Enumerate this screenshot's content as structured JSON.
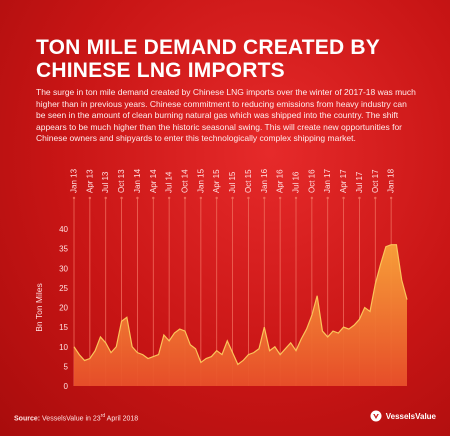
{
  "title": {
    "line1": "TON MILE DEMAND CREATED BY",
    "line2": "CHINESE LNG IMPORTS"
  },
  "description": "The surge in ton mile demand created by Chinese LNG imports over the winter of 2017-18 was much higher than in previous years. Chinese commitment to reducing emissions from heavy industry can be seen in the amount of clean burning natural gas which was shipped into the country. The shift appears to be much higher than the historic seasonal swing. This will create new opportunities for Chinese owners and shipyards to enter this technologically complex shipping market.",
  "source": {
    "label": "Source:",
    "text": "VesselsValue in 23",
    "superscript": "rd",
    "tail": "April 2018"
  },
  "brand": {
    "name": "VesselsValue",
    "icon": "vesselsvalue-logo-icon"
  },
  "colors": {
    "background": "#c81515",
    "area_top": "#f8a23a",
    "area_bottom": "#e8522a",
    "line": "#fbc45a",
    "guide": "#f06a5a"
  },
  "chart_data": {
    "type": "area",
    "ylabel": "Bn Ton Miles",
    "xlabel": "",
    "ylim": [
      0,
      40
    ],
    "yticks": [
      0,
      5,
      10,
      15,
      20,
      25,
      30,
      35,
      40
    ],
    "xtick_labels": [
      "Jan 13",
      "Apr 13",
      "Jul 13",
      "Oct 13",
      "Jan 14",
      "Apr 14",
      "Jul 14",
      "Oct 14",
      "Jan 15",
      "Apr 15",
      "Jul 15",
      "Oct 15",
      "Jan 16",
      "Apr 16",
      "Jul 16",
      "Oct 16",
      "Jan 17",
      "Apr 17",
      "Jul 17",
      "Oct 17",
      "Jan 18"
    ],
    "grid": false,
    "legend": "none",
    "series": [
      {
        "x": [
          "Jan 13",
          "Feb 13",
          "Mar 13",
          "Apr 13",
          "May 13",
          "Jun 13",
          "Jul 13",
          "Aug 13",
          "Sep 13",
          "Oct 13",
          "Nov 13",
          "Dec 13",
          "Jan 14",
          "Feb 14",
          "Mar 14",
          "Apr 14",
          "May 14",
          "Jun 14",
          "Jul 14",
          "Aug 14",
          "Sep 14",
          "Oct 14",
          "Nov 14",
          "Dec 14",
          "Jan 15",
          "Feb 15",
          "Mar 15",
          "Apr 15",
          "May 15",
          "Jun 15",
          "Jul 15",
          "Aug 15",
          "Sep 15",
          "Oct 15",
          "Nov 15",
          "Dec 15",
          "Jan 16",
          "Feb 16",
          "Mar 16",
          "Apr 16",
          "May 16",
          "Jun 16",
          "Jul 16",
          "Aug 16",
          "Sep 16",
          "Oct 16",
          "Nov 16",
          "Dec 16",
          "Jan 17",
          "Feb 17",
          "Mar 17",
          "Apr 17",
          "May 17",
          "Jun 17",
          "Jul 17",
          "Aug 17",
          "Sep 17",
          "Oct 17",
          "Nov 17",
          "Dec 17",
          "Jan 18",
          "Feb 18",
          "Mar 18",
          "Apr 18"
        ],
        "values": [
          10,
          8,
          6.5,
          7,
          9,
          12.5,
          11,
          8.5,
          10,
          16.5,
          17.5,
          10,
          8.5,
          8,
          7,
          7.5,
          8,
          13,
          11.5,
          13.5,
          14.5,
          14,
          10.5,
          9.5,
          6,
          7,
          7.5,
          9,
          8,
          11.5,
          8.5,
          5.5,
          6.5,
          8,
          8.5,
          9.5,
          15,
          9,
          10,
          8,
          9.5,
          11,
          9,
          12,
          14.5,
          18,
          23,
          14,
          12.5,
          14,
          13.5,
          15,
          14.5,
          15.5,
          17,
          20,
          19,
          26,
          31,
          35.5,
          36,
          36,
          27,
          22
        ]
      }
    ]
  }
}
